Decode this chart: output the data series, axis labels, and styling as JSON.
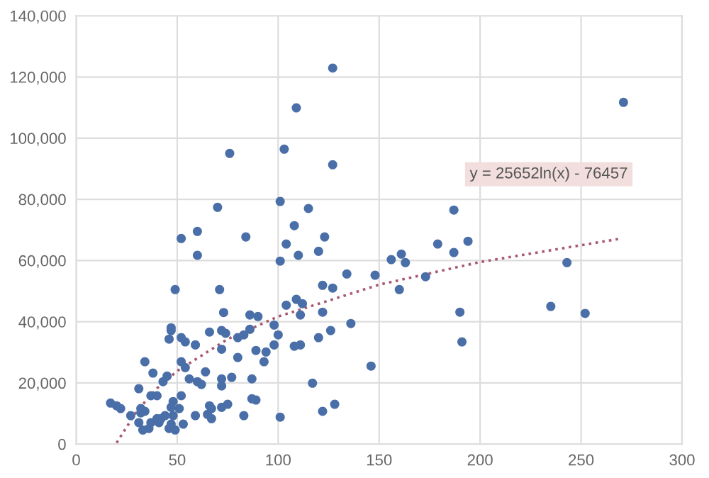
{
  "chart_data": {
    "type": "scatter",
    "x": [
      127,
      109,
      76,
      103,
      127,
      70,
      101,
      115,
      108,
      60,
      52,
      84,
      123,
      104,
      120,
      60,
      101,
      110,
      49,
      71,
      73,
      86,
      90,
      104,
      109,
      112,
      111,
      122,
      127,
      134,
      148,
      156,
      122,
      136,
      126,
      120,
      98,
      100,
      98,
      108,
      111,
      94,
      89,
      93,
      80,
      86,
      83,
      80,
      72,
      74,
      72,
      66,
      59,
      54,
      52,
      47,
      47,
      46,
      52,
      54,
      56,
      60,
      62,
      64,
      72,
      77,
      72,
      87,
      117,
      146,
      34,
      38,
      45,
      43,
      31,
      37,
      40,
      48,
      52,
      51,
      59,
      66,
      67,
      65,
      67,
      72,
      75,
      83,
      87,
      89,
      101,
      122,
      128,
      17,
      20,
      22,
      27,
      32,
      32,
      34,
      31,
      33,
      36,
      37,
      40,
      42,
      44,
      41,
      47,
      46,
      49,
      48,
      47,
      53,
      179,
      187,
      194,
      161,
      163,
      173,
      160,
      243,
      235,
      252,
      190,
      191,
      271,
      187
    ],
    "series": [
      {
        "color": "#4a6fa8",
        "values": [
          122900,
          109900,
          95000,
          96400,
          91300,
          77400,
          79300,
          77000,
          71400,
          69500,
          67200,
          67700,
          67700,
          65400,
          63000,
          61700,
          59800,
          61700,
          50500,
          50500,
          43000,
          42200,
          41700,
          45400,
          47300,
          45900,
          42200,
          51900,
          51000,
          55600,
          55200,
          60300,
          43100,
          39400,
          37100,
          34800,
          38900,
          35700,
          32400,
          32000,
          32400,
          30100,
          30600,
          26900,
          28300,
          37500,
          35700,
          34800,
          37100,
          36200,
          31000,
          36600,
          32400,
          33400,
          34800,
          38000,
          37100,
          34300,
          26900,
          25000,
          21300,
          20400,
          19500,
          23600,
          21300,
          21800,
          19000,
          21300,
          19900,
          25500,
          26900,
          23200,
          22200,
          20400,
          18100,
          15800,
          15800,
          13900,
          15800,
          11600,
          9300,
          12500,
          11600,
          9700,
          8300,
          12000,
          13000,
          9300,
          14800,
          14400,
          8800,
          10700,
          13000,
          13400,
          12500,
          11600,
          9300,
          11600,
          10200,
          10700,
          7000,
          4600,
          5100,
          7000,
          8300,
          8300,
          9300,
          7000,
          6500,
          5100,
          4600,
          9300,
          12000,
          6500,
          65400,
          62600,
          66300,
          62100,
          59300,
          54700,
          50500,
          59300,
          45000,
          42700,
          43100,
          33400,
          111700,
          76500
        ]
      },
      {
        "type": "line",
        "color": "#a85a70",
        "line_style": "dotted",
        "marker": "none",
        "x": [
          20,
          30,
          40,
          50,
          75,
          100,
          150,
          200,
          270
        ],
        "values": [
          400,
          10800,
          18200,
          23900,
          34300,
          41700,
          52100,
          59500,
          67200
        ]
      }
    ],
    "annotations": [
      "y = 25652ln(x) - 76457"
    ],
    "xlim": [
      0,
      300
    ],
    "xticks": [
      0,
      50,
      100,
      150,
      200,
      250,
      300
    ],
    "ylim": [
      0,
      140000
    ],
    "yticks": [
      {
        "value": 0,
        "label": "0"
      },
      {
        "value": 20000,
        "label": "20,000"
      },
      {
        "value": 40000,
        "label": "40,000"
      },
      {
        "value": 60000,
        "label": "60,000"
      },
      {
        "value": 80000,
        "label": "80,000"
      },
      {
        "value": 100000,
        "label": "100,000"
      },
      {
        "value": 120000,
        "label": "120,000"
      },
      {
        "value": 140000,
        "label": "140,000"
      }
    ],
    "grid": true,
    "marker": "circle",
    "legend": false
  }
}
